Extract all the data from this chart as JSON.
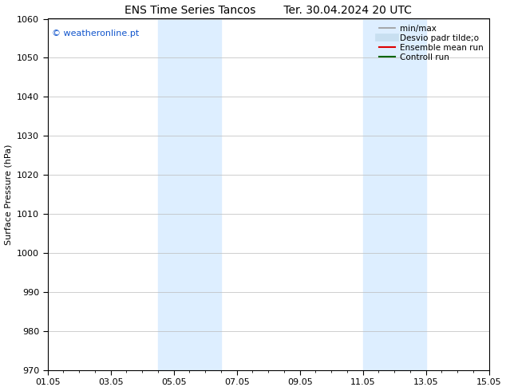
{
  "title_left": "ENS Time Series Tancos",
  "title_right": "Ter. 30.04.2024 20 UTC",
  "ylabel": "Surface Pressure (hPa)",
  "ylim": [
    970,
    1060
  ],
  "yticks": [
    970,
    980,
    990,
    1000,
    1010,
    1020,
    1030,
    1040,
    1050,
    1060
  ],
  "xlim_start": 0,
  "xlim_end": 14,
  "xtick_labels": [
    "01.05",
    "03.05",
    "05.05",
    "07.05",
    "09.05",
    "11.05",
    "13.05",
    "15.05"
  ],
  "xtick_positions": [
    0,
    2,
    4,
    6,
    8,
    10,
    12,
    14
  ],
  "shaded_regions": [
    {
      "xstart": 3.5,
      "xend": 5.5,
      "color": "#ddeeff"
    },
    {
      "xstart": 10.0,
      "xend": 12.0,
      "color": "#ddeeff"
    }
  ],
  "watermark": "© weatheronline.pt",
  "watermark_color": "#1155cc",
  "legend_entries": [
    {
      "label": "min/max",
      "color": "#999999",
      "lw": 1.2,
      "style": "solid"
    },
    {
      "label": "Desvio padr tilde;o",
      "color": "#c8dff0",
      "lw": 7,
      "style": "solid"
    },
    {
      "label": "Ensemble mean run",
      "color": "#dd0000",
      "lw": 1.5,
      "style": "solid"
    },
    {
      "label": "Controll run",
      "color": "#006600",
      "lw": 1.5,
      "style": "solid"
    }
  ],
  "bg_color": "#ffffff",
  "grid_color": "#bbbbbb",
  "font_size_title": 10,
  "font_size_axis": 8,
  "font_size_ticks": 8,
  "font_size_legend": 7.5,
  "font_size_watermark": 8
}
